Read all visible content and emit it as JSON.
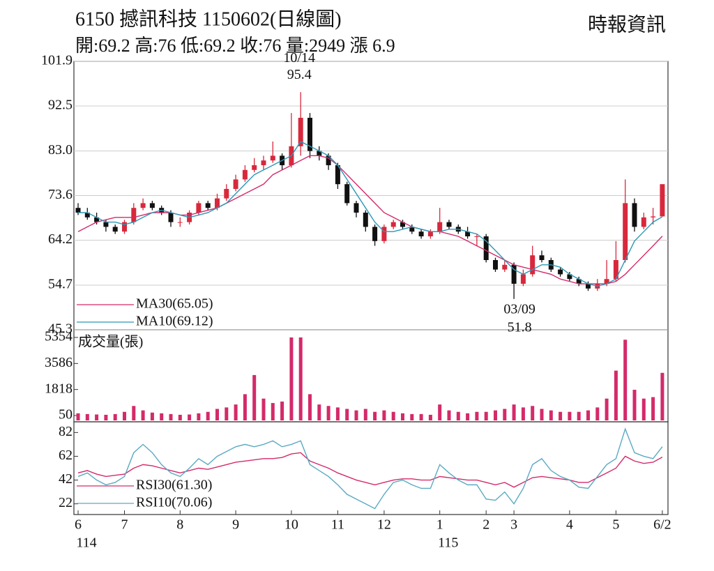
{
  "header": {
    "title": "6150  撼訊科技 1150602(日線圖)",
    "source": "時報資訊",
    "quote": "開:69.2 高:76 低:69.2 收:76 量:2949 漲 6.9"
  },
  "chart_data": [
    {
      "type": "candlestick",
      "categories": [
        "6",
        null,
        null,
        null,
        null,
        "7",
        null,
        null,
        null,
        null,
        null,
        "8",
        null,
        null,
        null,
        null,
        null,
        "9",
        null,
        null,
        null,
        null,
        null,
        "10",
        null,
        null,
        null,
        null,
        "11",
        null,
        null,
        null,
        null,
        "12",
        null,
        null,
        null,
        null,
        null,
        "1",
        null,
        null,
        null,
        null,
        "2",
        null,
        null,
        "3",
        null,
        null,
        null,
        null,
        null,
        "4",
        null,
        null,
        null,
        null,
        "5",
        null,
        null,
        null,
        null,
        "6/2"
      ],
      "year_labels": [
        "114",
        null,
        null,
        null,
        null,
        null,
        null,
        null,
        null,
        null,
        null,
        null,
        null,
        null,
        null,
        null,
        null,
        null,
        null,
        null,
        null,
        null,
        null,
        null,
        null,
        null,
        null,
        null,
        null,
        null,
        null,
        null,
        null,
        null,
        null,
        null,
        null,
        null,
        null,
        "115",
        null,
        null,
        null,
        null,
        null,
        null,
        null,
        null,
        null,
        null,
        null,
        null,
        null,
        null,
        null,
        null,
        null,
        null,
        null,
        null,
        null,
        null,
        null,
        null
      ],
      "open": [
        71,
        70,
        69,
        68,
        67,
        66,
        68,
        71,
        72,
        71,
        70,
        68,
        68,
        70,
        72,
        71,
        73,
        75,
        77,
        79,
        80,
        81,
        82,
        80,
        84,
        90,
        83,
        82,
        80,
        76,
        72,
        70,
        67,
        64,
        67,
        68,
        67,
        66,
        65,
        66,
        68,
        67,
        66,
        65,
        65,
        60,
        58,
        59,
        55,
        57,
        61,
        60,
        58,
        57,
        56,
        55,
        54,
        55,
        56,
        60,
        72,
        67,
        69,
        69.2
      ],
      "high": [
        72,
        71,
        70,
        68.5,
        67.5,
        68.5,
        72,
        73,
        72.5,
        71.5,
        70.5,
        69,
        70.5,
        72.5,
        72.5,
        74,
        76,
        78,
        80,
        81.5,
        82,
        85,
        82.5,
        91,
        95.4,
        91,
        84,
        82.5,
        80.5,
        76.5,
        72.5,
        70.5,
        67.5,
        67.5,
        68.5,
        68.5,
        67.5,
        66.5,
        66.5,
        71,
        68.5,
        67.5,
        67,
        65.5,
        65.5,
        60.5,
        60,
        59.5,
        58,
        63,
        62,
        60.5,
        58.5,
        57.5,
        56.5,
        55.5,
        56,
        60,
        64,
        77,
        73,
        70,
        71,
        76
      ],
      "low": [
        69.5,
        68.5,
        67.5,
        66,
        65.5,
        65.5,
        67.5,
        70.5,
        70.5,
        69.5,
        67,
        67,
        67.5,
        69.5,
        70.5,
        70.5,
        72.5,
        74.5,
        76.5,
        78.5,
        79,
        80.5,
        79,
        79.5,
        82,
        81.5,
        81,
        79,
        75,
        71.5,
        69,
        66,
        63,
        63.5,
        66.5,
        66.5,
        65.5,
        64.5,
        64.5,
        65.5,
        66.5,
        65.5,
        64.5,
        63,
        59.5,
        57.5,
        57.5,
        51.8,
        54.5,
        56.5,
        59.5,
        57.5,
        56.5,
        55.5,
        54.5,
        53.5,
        53.5,
        54.5,
        55.5,
        59.5,
        66,
        66.5,
        67.5,
        69.2
      ],
      "close": [
        70,
        69,
        68,
        67,
        66,
        68,
        71,
        72,
        71,
        70,
        68,
        68,
        70,
        72,
        71,
        73,
        75,
        77,
        79,
        80,
        81,
        82,
        80,
        84,
        90,
        83,
        82,
        80,
        76,
        72,
        70,
        67,
        64,
        67,
        68,
        67,
        66,
        65,
        66,
        68,
        67,
        66,
        65,
        65,
        60,
        58,
        59,
        55,
        57,
        61,
        60,
        58,
        57,
        56,
        55,
        54,
        55,
        56,
        60,
        72,
        67,
        69,
        69.2,
        76
      ],
      "up_color": "#d8283c",
      "down_color": "#111111",
      "series": [
        {
          "name": "MA30(65.05)",
          "color": "#d42a6a",
          "values": [
            66,
            67,
            68,
            68.5,
            69,
            69,
            69,
            69.5,
            70,
            70,
            70,
            69.5,
            69.5,
            70,
            70.5,
            71,
            72,
            73,
            74,
            75,
            76,
            78,
            79,
            80,
            81,
            82,
            82,
            81.5,
            80,
            78,
            76,
            74,
            72,
            70,
            69,
            68,
            67,
            66.5,
            66,
            66,
            65.5,
            65,
            64,
            63,
            62,
            61,
            60,
            59,
            58.5,
            58,
            57.5,
            57,
            56,
            55.5,
            55,
            55,
            55,
            55,
            55.5,
            57,
            59,
            61,
            63,
            65.05
          ]
        },
        {
          "name": "MA10(69.12)",
          "color": "#2a98b6",
          "values": [
            70,
            70,
            69,
            68,
            68,
            67.5,
            68,
            69,
            70,
            70.5,
            70,
            69.5,
            69,
            69.5,
            70,
            71,
            72,
            74,
            76,
            78,
            79,
            80,
            81,
            82,
            85,
            84,
            83,
            82,
            80,
            77,
            74,
            71,
            68,
            66,
            66,
            66.5,
            67,
            66.5,
            66,
            66,
            66.5,
            66.5,
            66,
            65.5,
            64,
            62,
            60,
            58,
            57,
            58,
            59,
            59,
            58.5,
            57,
            56,
            55,
            54.5,
            55,
            56,
            60,
            64,
            66,
            68,
            69.12
          ]
        }
      ],
      "annotations": [
        {
          "date": "10/14",
          "value": 95.4
        },
        {
          "date": "03/09",
          "value": 51.8
        }
      ],
      "ylim": [
        45.3,
        101.9
      ],
      "yticks": [
        101.9,
        92.5,
        {
          "value": 83,
          "label": "83.0"
        },
        73.6,
        64.2,
        54.7,
        45.3
      ],
      "grid": true
    },
    {
      "type": "bar",
      "title": "成交量(張)",
      "color": "#d42a6a",
      "values": [
        200,
        150,
        120,
        100,
        150,
        300,
        700,
        400,
        250,
        200,
        150,
        100,
        120,
        200,
        300,
        500,
        600,
        800,
        1500,
        2800,
        1200,
        900,
        1000,
        5354,
        5354,
        1500,
        800,
        700,
        600,
        500,
        400,
        500,
        300,
        400,
        300,
        200,
        150,
        150,
        100,
        800,
        400,
        300,
        200,
        300,
        300,
        400,
        500,
        800,
        600,
        700,
        500,
        400,
        300,
        300,
        300,
        400,
        600,
        1200,
        3100,
        5200,
        1800,
        1200,
        1300,
        2949
      ],
      "ylim": [
        50,
        5354
      ],
      "yticks": [
        5354,
        3586,
        1818,
        50
      ]
    },
    {
      "type": "line",
      "series": [
        {
          "name": "RSI30(61.30)",
          "color": "#d42a6a",
          "values": [
            48,
            50,
            47,
            45,
            46,
            47,
            52,
            55,
            54,
            52,
            50,
            48,
            50,
            52,
            51,
            53,
            55,
            57,
            58,
            59,
            60,
            60,
            61,
            64,
            65,
            58,
            55,
            52,
            48,
            45,
            42,
            40,
            38,
            40,
            42,
            43,
            43,
            42,
            42,
            45,
            44,
            43,
            42,
            42,
            40,
            38,
            40,
            36,
            40,
            44,
            45,
            44,
            43,
            42,
            40,
            40,
            44,
            48,
            52,
            62,
            58,
            56,
            57,
            61.3
          ]
        },
        {
          "name": "RSI10(70.06)",
          "color": "#5aaac2",
          "values": [
            45,
            48,
            42,
            38,
            40,
            45,
            65,
            72,
            65,
            55,
            48,
            45,
            52,
            60,
            55,
            62,
            66,
            70,
            72,
            70,
            72,
            75,
            70,
            72,
            75,
            55,
            50,
            45,
            38,
            30,
            26,
            22,
            18,
            30,
            40,
            42,
            38,
            35,
            35,
            55,
            48,
            42,
            38,
            38,
            26,
            25,
            32,
            22,
            35,
            55,
            60,
            50,
            45,
            42,
            36,
            35,
            45,
            55,
            60,
            85,
            65,
            62,
            60,
            70.06
          ]
        }
      ],
      "ylim": [
        13,
        91
      ],
      "yticks": [
        82,
        62,
        42,
        22
      ]
    }
  ]
}
